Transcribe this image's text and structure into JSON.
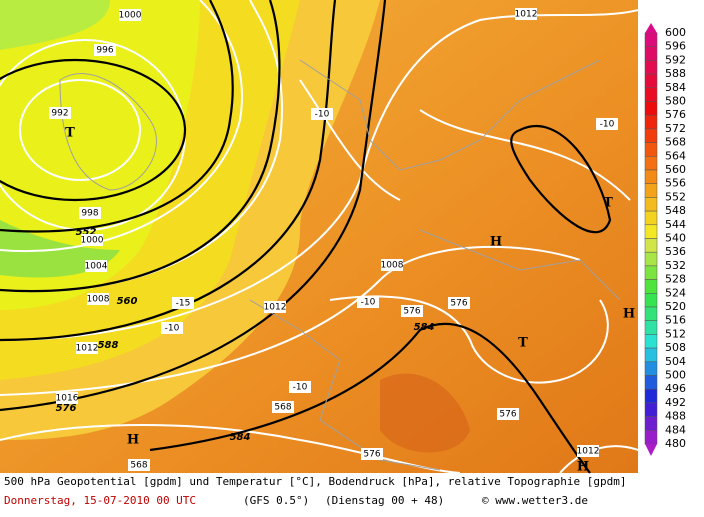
{
  "colorbar": {
    "labels": [
      "600",
      "596",
      "592",
      "588",
      "584",
      "580",
      "576",
      "572",
      "568",
      "564",
      "560",
      "556",
      "552",
      "548",
      "544",
      "540",
      "536",
      "532",
      "528",
      "524",
      "520",
      "516",
      "512",
      "508",
      "504",
      "500",
      "496",
      "492",
      "488",
      "484",
      "480"
    ]
  },
  "map_labels": [
    "1000",
    "996",
    "992",
    "T",
    "998",
    "552",
    "1000",
    "1004",
    "1008",
    "560",
    "1012",
    "588",
    "1016",
    "576",
    "H",
    "-15",
    "-10",
    "-10",
    "-10",
    "-10",
    "1012",
    "1008",
    "584",
    "584",
    "H",
    "T",
    "T",
    "H",
    "-10",
    "1012",
    "1012",
    "H",
    "576",
    "576",
    "568",
    "576",
    "576",
    "568"
  ],
  "footer": {
    "description": "500 hPa Geopotential [gpdm] und Temperatur [°C], Bodendruck [hPa], relative Topographie [gpdm]",
    "date": "Donnerstag, 15-07-2010  00 UTC",
    "model": "(GFS 0.5°)",
    "run": "(Dienstag 00 + 48)",
    "copyright": "© www.wetter3.de"
  }
}
